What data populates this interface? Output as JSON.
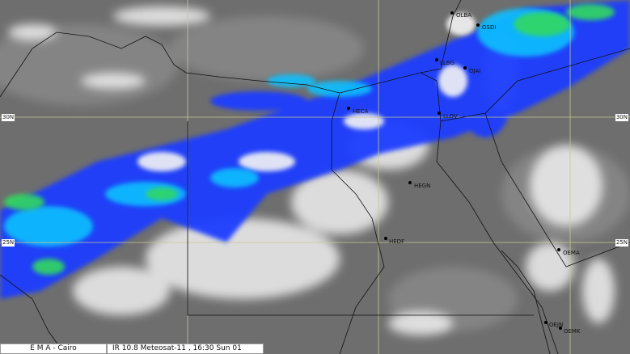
{
  "footer": {
    "agency": "E M A  -  Cairo",
    "product": "IR 10.8 Meteosat-11 , 16:30  Sun 01"
  },
  "latitude_labels": [
    "30N",
    "25N"
  ],
  "stations": [
    "OLBA",
    "OSDI",
    "LLBG",
    "OJAI",
    "HECA",
    "LLOV",
    "HEGN",
    "HEDF",
    "OEMA",
    "OEJN",
    "OEMK"
  ],
  "colors": {
    "background_gray": "#6e6e6e",
    "cloud_white": "#f4f4f4",
    "cloud_blue": "#1f3cff",
    "cloud_cyan": "#10c0ff",
    "cloud_green": "#30d860",
    "grid": "#c8c890",
    "borders": "#111111"
  }
}
